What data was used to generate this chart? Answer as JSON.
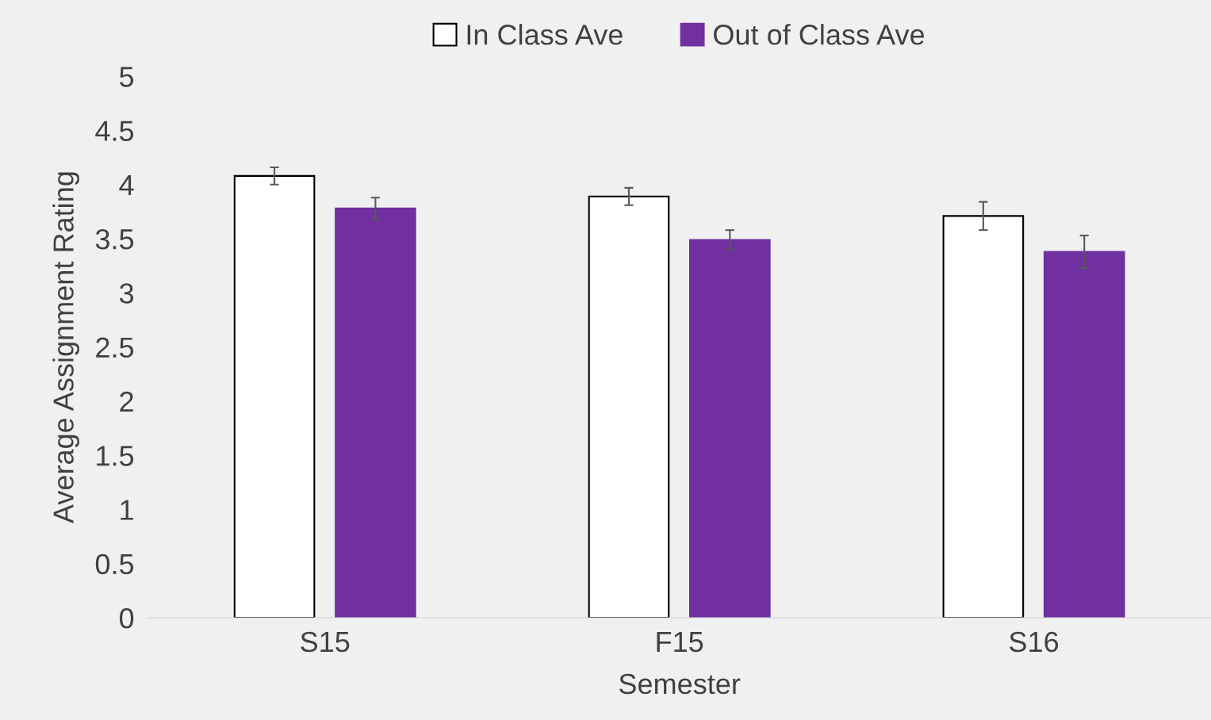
{
  "chart_data": {
    "type": "bar",
    "xlabel": "Semester",
    "ylabel": "Average Assignment Rating",
    "categories": [
      "S15",
      "F15",
      "S16"
    ],
    "series": [
      {
        "name": "In Class Ave",
        "color": "#ffffff",
        "values": [
          4.08,
          3.89,
          3.71
        ],
        "errors": [
          0.08,
          0.08,
          0.13
        ]
      },
      {
        "name": "Out of Class Ave",
        "color": "#7030a0",
        "values": [
          3.78,
          3.49,
          3.38
        ],
        "errors": [
          0.1,
          0.09,
          0.15
        ]
      }
    ],
    "ylim": [
      0,
      5
    ],
    "yticks": [
      0,
      0.5,
      1,
      1.5,
      2,
      2.5,
      3,
      3.5,
      4,
      4.5,
      5
    ],
    "grid": false,
    "legend": "top"
  }
}
